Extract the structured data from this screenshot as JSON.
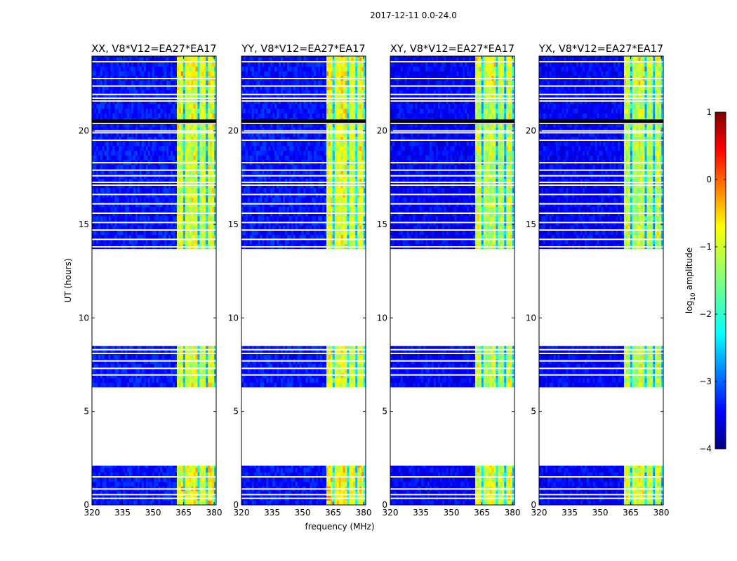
{
  "figure": {
    "suptitle": "2017-12-11 0.0-24.0",
    "xlabel": "frequency (MHz)",
    "ylabel": "UT (hours)"
  },
  "colorbar": {
    "label_prefix": "log",
    "label_sub": "10",
    "label_suffix": " amplitude",
    "ticks": [
      1,
      0,
      -1,
      -2,
      -3,
      -4
    ],
    "tick_labels": [
      "1",
      "0",
      "−1",
      "−2",
      "−3",
      "−4"
    ],
    "colormap": "jet",
    "colors": [
      "#00007f",
      "#0000ff",
      "#007fff",
      "#00ffff",
      "#7fff7f",
      "#ffff00",
      "#ff7f00",
      "#ff0000",
      "#7f0000"
    ]
  },
  "chart_data": {
    "type": "heatmap",
    "title": "2017-12-11 0.0-24.0",
    "xlabel": "frequency (MHz)",
    "ylabel": "UT (hours)",
    "xlim": [
      320,
      381
    ],
    "ylim": [
      0,
      24
    ],
    "xticks": [
      320,
      335,
      350,
      365,
      380
    ],
    "yticks": [
      0,
      5,
      10,
      15,
      20
    ],
    "value_range": [
      -4,
      1
    ],
    "value_label": "log10 amplitude",
    "data_segments_hours": [
      [
        0,
        2.1
      ],
      [
        6.3,
        8.5
      ],
      [
        13.7,
        24
      ]
    ],
    "panels": [
      {
        "title": "XX, V8*V12=EA27*EA17",
        "band_mhz": [
          361.5,
          381
        ],
        "band_level_log10": -1.2,
        "background_level_log10": -3.3
      },
      {
        "title": "YY, V8*V12=EA27*EA17",
        "band_mhz": [
          361.5,
          381
        ],
        "band_level_log10": -1.1,
        "background_level_log10": -3.3
      },
      {
        "title": "XY, V8*V12=EA27*EA17",
        "band_mhz": [
          361.5,
          381
        ],
        "band_level_log10": -1.3,
        "background_level_log10": -3.4
      },
      {
        "title": "YX, V8*V12=EA27*EA17",
        "band_mhz": [
          361.5,
          381
        ],
        "band_level_log10": -1.3,
        "background_level_log10": -3.4
      }
    ]
  }
}
